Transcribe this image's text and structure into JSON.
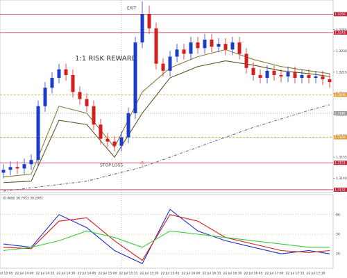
{
  "chart_data": [
    {
      "type": "candlestick",
      "annotations": [
        "EXIT",
        "1:1 RISK REWARD",
        "STOP LOSS"
      ],
      "categories": [
        "22 Jul 13:45",
        null,
        null,
        "22 Jul 14:00",
        null,
        null,
        "22 Jul 14:15",
        null,
        null,
        "22 Jul 14:30",
        null,
        null,
        "22 Jul 14:45",
        null,
        null,
        "22 Jul 15:00",
        null,
        null,
        "22 Jul 15:15",
        null,
        null,
        "22 Jul 15:30",
        null,
        null,
        "22 Jul 15:45",
        null,
        null,
        "22 Jul 16:00",
        null,
        null,
        "22 Jul 16:15",
        null,
        null,
        "22 Jul 16:30",
        null,
        null,
        "22 Jul 16:45",
        null,
        null,
        "22 Jul 17:00",
        null,
        null,
        "22 Jul 17:15",
        null,
        null,
        "22 Jul 17:30",
        null,
        null
      ],
      "open": [
        1.3144,
        1.3146,
        1.3148,
        1.3147,
        1.315,
        1.3153,
        1.3191,
        1.3204,
        1.3211,
        1.3217,
        1.3213,
        1.3201,
        1.3196,
        1.3191,
        1.3178,
        1.3168,
        1.3166,
        1.3163,
        1.3169,
        1.3186,
        1.3236,
        1.3256,
        1.3246,
        1.3221,
        1.3216,
        1.3226,
        1.3231,
        1.3228,
        1.3236,
        1.3232,
        1.3238,
        1.3233,
        1.3235,
        1.3231,
        1.3236,
        1.3228,
        1.3218,
        1.3213,
        1.3211,
        1.3216,
        1.3213,
        1.3212,
        1.3215,
        1.3211,
        1.3213,
        1.3211,
        1.3212,
        1.321
      ],
      "high": [
        1.315,
        1.3152,
        1.3152,
        1.3154,
        1.3157,
        1.3195,
        1.3208,
        1.3215,
        1.3221,
        1.3221,
        1.3217,
        1.3205,
        1.32,
        1.3195,
        1.3182,
        1.3172,
        1.317,
        1.3173,
        1.319,
        1.324,
        1.3265,
        1.3262,
        1.325,
        1.3225,
        1.323,
        1.3235,
        1.3235,
        1.324,
        1.324,
        1.3242,
        1.3242,
        1.3239,
        1.3239,
        1.324,
        1.324,
        1.3232,
        1.3222,
        1.3217,
        1.322,
        1.322,
        1.3217,
        1.3219,
        1.3219,
        1.3217,
        1.3217,
        1.3216,
        1.3216,
        1.3214
      ],
      "low": [
        1.314,
        1.3142,
        1.3143,
        1.3143,
        1.3146,
        1.3149,
        1.3187,
        1.32,
        1.3207,
        1.3209,
        1.3197,
        1.3192,
        1.3187,
        1.3174,
        1.3164,
        1.3162,
        1.3159,
        1.3159,
        1.3165,
        1.3182,
        1.3232,
        1.3242,
        1.3217,
        1.3212,
        1.3212,
        1.3222,
        1.3224,
        1.3224,
        1.3228,
        1.3228,
        1.3229,
        1.3229,
        1.3227,
        1.3227,
        1.3224,
        1.3214,
        1.3209,
        1.3207,
        1.3207,
        1.3209,
        1.3208,
        1.3208,
        1.3207,
        1.3207,
        1.3207,
        1.3207,
        1.3206,
        1.3204
      ],
      "close": [
        1.3146,
        1.3148,
        1.3147,
        1.315,
        1.3153,
        1.3191,
        1.3204,
        1.3211,
        1.3217,
        1.3213,
        1.3201,
        1.3196,
        1.3191,
        1.3178,
        1.3168,
        1.3166,
        1.3163,
        1.3169,
        1.3186,
        1.3236,
        1.3256,
        1.3246,
        1.3221,
        1.3216,
        1.3226,
        1.3231,
        1.3228,
        1.3236,
        1.3232,
        1.3238,
        1.3233,
        1.3235,
        1.3231,
        1.3236,
        1.3228,
        1.3218,
        1.3213,
        1.3211,
        1.3216,
        1.3213,
        1.3212,
        1.3215,
        1.3211,
        1.3213,
        1.3211,
        1.3212,
        1.321,
        1.3208
      ],
      "up_color": "#1c3cc8",
      "down_color": "#d21e1e",
      "lines": [
        {
          "color": "#8a7a3a",
          "style": "solid",
          "x": [
            0,
            4,
            8,
            12,
            16,
            20,
            24,
            28,
            32,
            36,
            40,
            44,
            47
          ],
          "values": [
            1.3141,
            1.3143,
            1.3191,
            1.3186,
            1.3162,
            1.3201,
            1.3218,
            1.3226,
            1.3231,
            1.3224,
            1.3219,
            1.3216,
            1.3214
          ]
        },
        {
          "color": "#5e5224",
          "style": "solid",
          "x": [
            0,
            4,
            8,
            12,
            16,
            20,
            24,
            28,
            32,
            36,
            40,
            44,
            47
          ],
          "values": [
            1.3137,
            1.3138,
            1.3181,
            1.3178,
            1.3155,
            1.3186,
            1.3211,
            1.3219,
            1.3223,
            1.322,
            1.3216,
            1.3214,
            1.3212
          ]
        },
        {
          "color": "#6a6aa0",
          "style": "dashdot",
          "x": [
            0,
            12,
            20,
            28,
            36,
            44,
            47
          ],
          "values": [
            1.3131,
            1.3138,
            1.3148,
            1.3162,
            1.3176,
            1.3188,
            1.3192
          ]
        }
      ],
      "levels": [
        {
          "color": "#b8283c",
          "style": "solid",
          "values": [
            1.3256,
            1.3243,
            1.3151,
            1.3132
          ]
        },
        {
          "color": "#e0a040",
          "style": "dashed",
          "values": [
            1.3199,
            1.3169
          ]
        },
        {
          "color": "#9a9a9a",
          "style": "dotted",
          "values": [
            1.3186
          ]
        }
      ],
      "ylim": [
        1.313,
        1.3266
      ],
      "yticks": [
        {
          "value": 1.314,
          "label": "1.3140"
        },
        1.3155,
        {
          "value": 1.317,
          "label": "1.3170"
        },
        1.3185,
        {
          "value": 1.32,
          "label": "1.3200"
        },
        1.3215,
        {
          "value": 1.323,
          "label": "1.3230"
        },
        1.3245
      ]
    },
    {
      "type": "line",
      "title": "ID 4682 36.7953 39.2993",
      "series": [
        {
          "color": "#1c2cc8",
          "x": [
            0,
            4,
            8,
            12,
            16,
            20,
            24,
            28,
            32,
            36,
            40,
            44,
            47
          ],
          "values": [
            35,
            30,
            80,
            60,
            25,
            5,
            88,
            55,
            40,
            30,
            20,
            25,
            20
          ]
        },
        {
          "color": "#d21e1e",
          "x": [
            0,
            4,
            8,
            12,
            16,
            20,
            24,
            28,
            32,
            36,
            40,
            44,
            47
          ],
          "values": [
            30,
            28,
            70,
            75,
            40,
            10,
            80,
            70,
            45,
            35,
            25,
            22,
            25
          ]
        },
        {
          "color": "#3cc83c",
          "x": [
            0,
            4,
            8,
            12,
            16,
            20,
            24,
            28,
            32,
            36,
            40,
            44,
            47
          ],
          "values": [
            25,
            30,
            40,
            55,
            45,
            30,
            55,
            50,
            45,
            40,
            35,
            30,
            30
          ]
        }
      ],
      "ylim": [
        0,
        100
      ],
      "yticks": [
        20,
        50,
        80
      ],
      "grid": true
    }
  ]
}
